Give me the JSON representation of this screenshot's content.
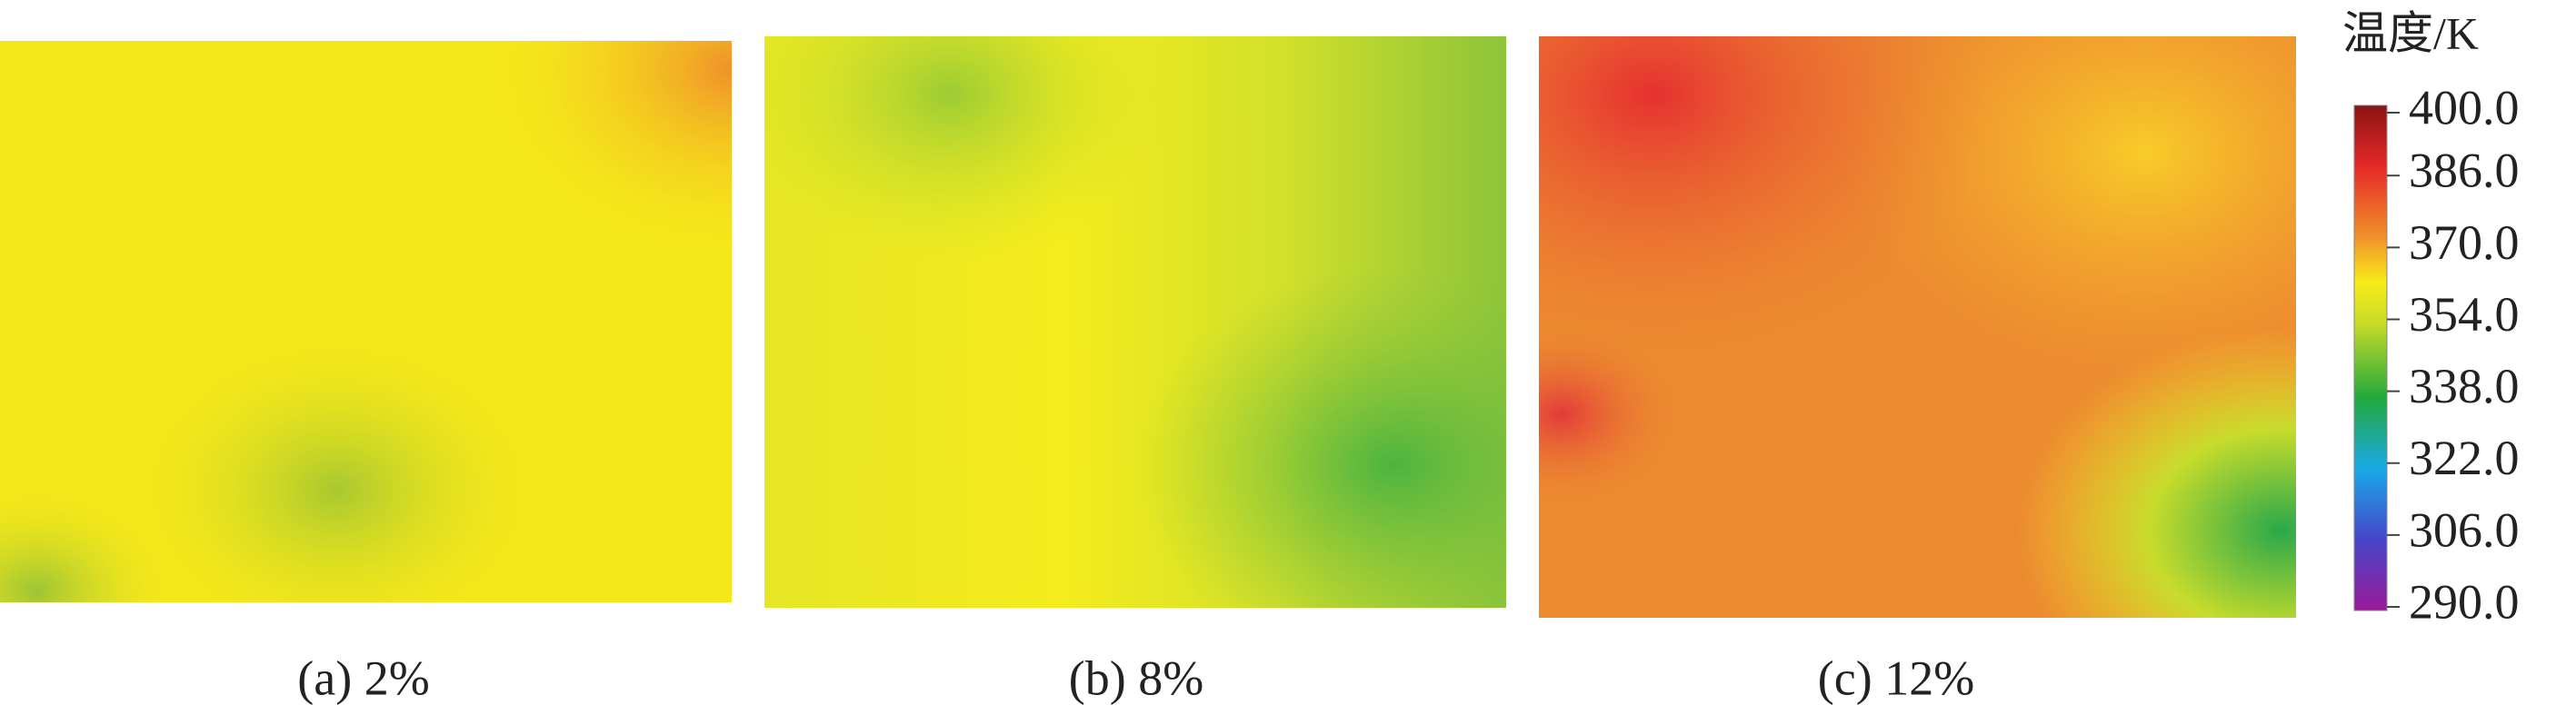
{
  "panels": [
    {
      "caption": "(a) 2%"
    },
    {
      "caption": "(b) 8%"
    },
    {
      "caption": "(c) 12%"
    }
  ],
  "colorbar": {
    "title": "温度/K",
    "lim": [
      290,
      400
    ],
    "ticks": [
      {
        "value": 400,
        "label": "400.0"
      },
      {
        "value": 386,
        "label": "386.0"
      },
      {
        "value": 370,
        "label": "370.0"
      },
      {
        "value": 354,
        "label": "354.0"
      },
      {
        "value": 338,
        "label": "338.0"
      },
      {
        "value": 322,
        "label": "322.0"
      },
      {
        "value": 306,
        "label": "306.0"
      },
      {
        "value": 290,
        "label": "290.0"
      }
    ]
  }
}
